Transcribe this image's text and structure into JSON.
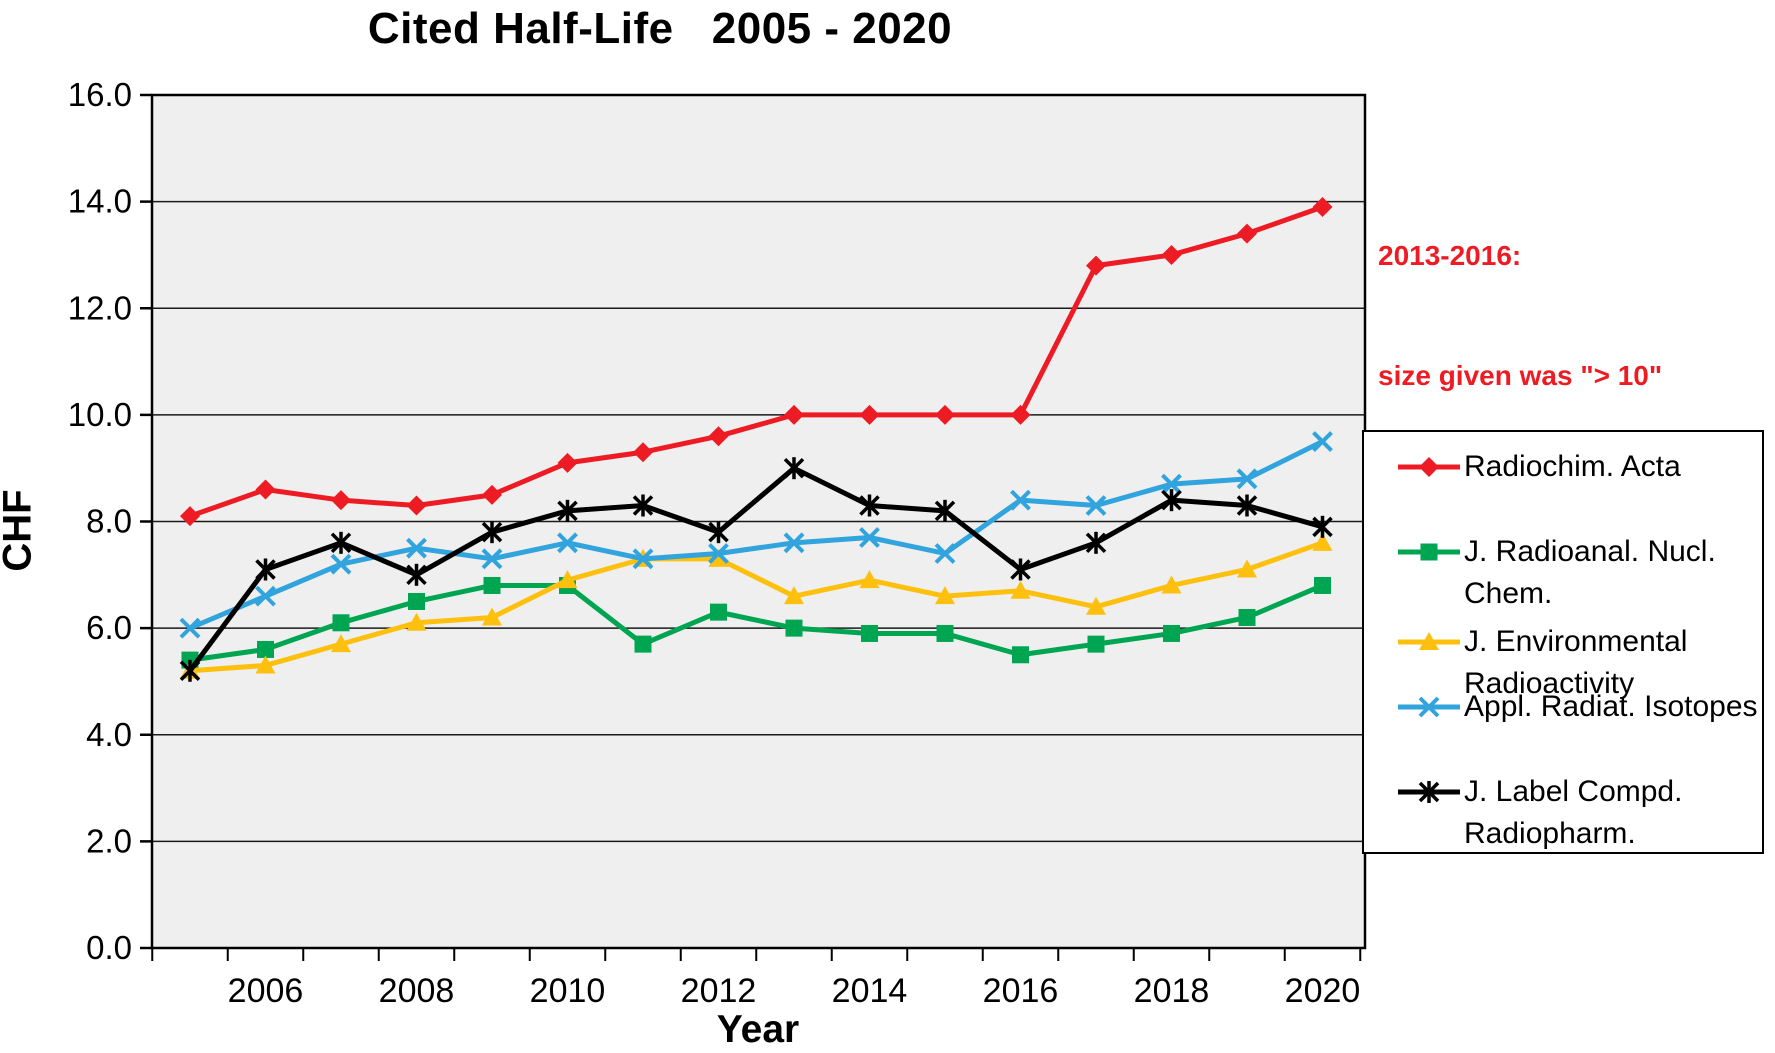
{
  "page": {
    "background": "#ffffff",
    "plot_border_color": "#000000",
    "gridline_color": "#1a1a1a"
  },
  "chart_data": {
    "type": "line",
    "title": "Cited Half-Life   2005 - 2020",
    "xlabel": "Year",
    "ylabel": "CHF",
    "x": [
      2005,
      2006,
      2007,
      2008,
      2009,
      2010,
      2011,
      2012,
      2013,
      2014,
      2015,
      2016,
      2017,
      2018,
      2019,
      2020
    ],
    "x_tick_labels": [
      "2006",
      "2008",
      "2010",
      "2012",
      "2014",
      "2016",
      "2018",
      "2020"
    ],
    "y_tick_labels": [
      "0.0",
      "2.0",
      "4.0",
      "6.0",
      "8.0",
      "10.0",
      "12.0",
      "14.0",
      "16.0"
    ],
    "ylim": [
      0,
      16
    ],
    "grid": "horizontal-only",
    "plot_background": "#efefef",
    "legend_position": "right-outside",
    "series": [
      {
        "name": "Radiochim. Acta",
        "legend_lines": [
          "Radiochim. Acta"
        ],
        "color": "#ed1c24",
        "marker": "diamond",
        "values": [
          8.1,
          8.6,
          8.4,
          8.3,
          8.5,
          9.1,
          9.3,
          9.6,
          10.0,
          10.0,
          10.0,
          10.0,
          12.8,
          13.0,
          13.4,
          13.9
        ]
      },
      {
        "name": "J. Radioanal. Nucl. Chem.",
        "legend_lines": [
          "J. Radioanal. Nucl.",
          "Chem."
        ],
        "color": "#00a551",
        "marker": "square",
        "values": [
          5.4,
          5.6,
          6.1,
          6.5,
          6.8,
          6.8,
          5.7,
          6.3,
          6.0,
          5.9,
          5.9,
          5.5,
          5.7,
          5.9,
          6.2,
          6.8
        ]
      },
      {
        "name": "J. Environmental Radioactivity",
        "legend_lines": [
          "J. Environmental",
          "Radioactivity"
        ],
        "color": "#fdc00e",
        "marker": "triangle",
        "values": [
          5.2,
          5.3,
          5.7,
          6.1,
          6.2,
          6.9,
          7.3,
          7.3,
          6.6,
          6.9,
          6.6,
          6.7,
          6.4,
          6.8,
          7.1,
          7.6
        ]
      },
      {
        "name": "Appl. Radiat. Isotopes",
        "legend_lines": [
          "Appl. Radiat. Isotopes"
        ],
        "color": "#31a3dd",
        "marker": "x",
        "values": [
          6.0,
          6.6,
          7.2,
          7.5,
          7.3,
          7.6,
          7.3,
          7.4,
          7.6,
          7.7,
          7.4,
          8.4,
          8.3,
          8.7,
          8.8,
          9.5
        ]
      },
      {
        "name": "J. Label Compd. Radiopharm.",
        "legend_lines": [
          "J. Label Compd.",
          "Radiopharm."
        ],
        "color": "#000000",
        "marker": "asterisk",
        "values": [
          5.2,
          7.1,
          7.6,
          7.0,
          7.8,
          8.2,
          8.3,
          7.8,
          9.0,
          8.3,
          8.2,
          7.1,
          7.6,
          8.4,
          8.3,
          7.9
        ]
      }
    ],
    "annotation": {
      "line1": "2013-2016:",
      "line2": "size given was \"> 10\"",
      "color": "#ed1c24"
    }
  }
}
